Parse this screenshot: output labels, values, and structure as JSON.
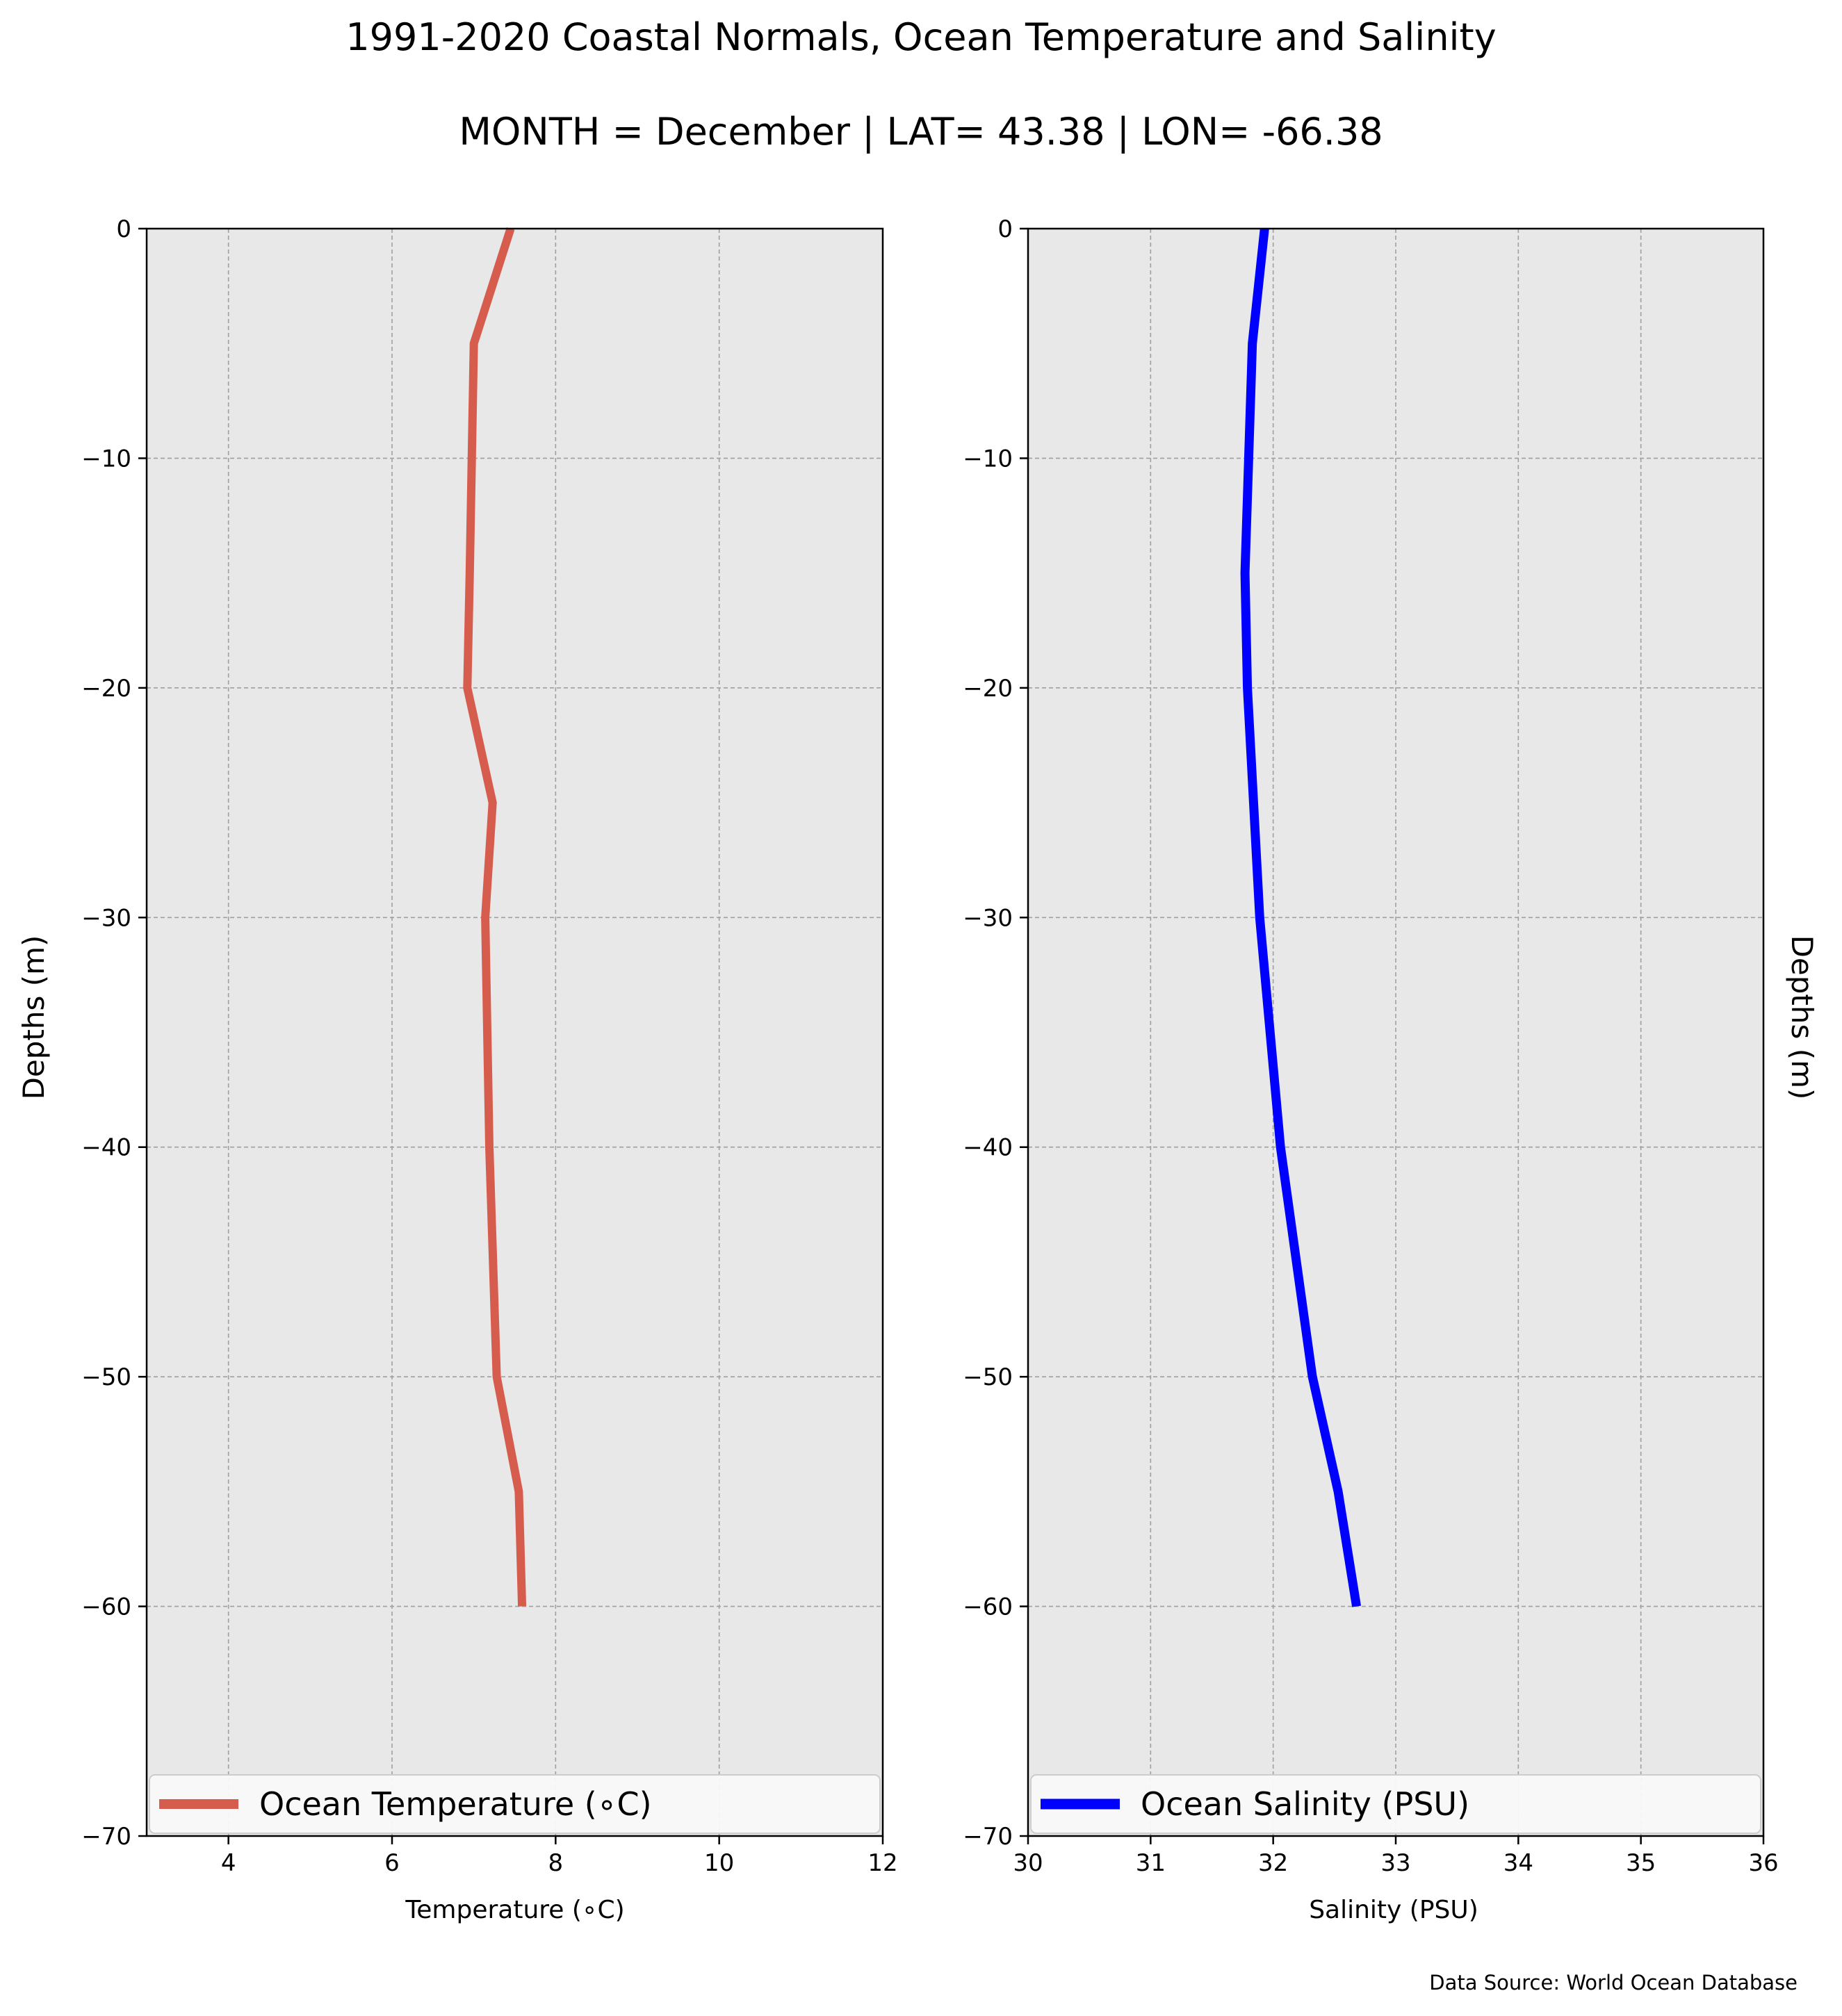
{
  "title": "1991-2020 Coastal Normals, Ocean Temperature and Salinity",
  "subtitle": "MONTH = December | LAT= 43.38 | LON= -66.38",
  "source_note": "Data Source: World Ocean Database",
  "colors": {
    "temperature_line": "#d65d4e",
    "salinity_line": "#0000ff",
    "plot_background": "#e8e8e8",
    "grid": "#a0a0a0"
  },
  "chart_data": [
    {
      "type": "line",
      "title": "",
      "xlabel": "Temperature (∘C)",
      "ylabel": "Depths (m)",
      "xlim": [
        3,
        12
      ],
      "ylim": [
        -70,
        0
      ],
      "xticks": [
        4,
        6,
        8,
        10,
        12
      ],
      "xtick_labels": [
        "4",
        "6",
        "8",
        "10",
        "12"
      ],
      "yticks": [
        0,
        -10,
        -20,
        -30,
        -40,
        -50,
        -60,
        -70
      ],
      "ytick_labels": [
        "0",
        "−10",
        "−20",
        "−30",
        "−40",
        "−50",
        "−60",
        "−70"
      ],
      "grid": true,
      "legend_position": "bottom",
      "series": [
        {
          "name": "Ocean Temperature (∘C)",
          "x": [
            7.45,
            7.0,
            6.95,
            6.92,
            7.23,
            7.14,
            7.19,
            7.28,
            7.55,
            7.59
          ],
          "y": [
            0,
            -5,
            -15,
            -20,
            -25,
            -30,
            -40,
            -50,
            -55,
            -60
          ]
        }
      ]
    },
    {
      "type": "line",
      "title": "",
      "xlabel": "Salinity (PSU)",
      "ylabel": "Depths (m)",
      "xlim": [
        30,
        36
      ],
      "ylim": [
        -70,
        0
      ],
      "xticks": [
        30,
        31,
        32,
        33,
        34,
        35,
        36
      ],
      "xtick_labels": [
        "30",
        "31",
        "32",
        "33",
        "34",
        "35",
        "36"
      ],
      "yticks": [
        0,
        -10,
        -20,
        -30,
        -40,
        -50,
        -60,
        -70
      ],
      "ytick_labels": [
        "0",
        "−10",
        "−20",
        "−30",
        "−40",
        "−50",
        "−60",
        "−70"
      ],
      "grid": true,
      "legend_position": "bottom",
      "series": [
        {
          "name": "Ocean Salinity (PSU)",
          "x": [
            31.93,
            31.83,
            31.77,
            31.79,
            31.89,
            32.06,
            32.32,
            32.53,
            32.68
          ],
          "y": [
            0,
            -5,
            -15,
            -20,
            -30,
            -40,
            -50,
            -55,
            -60
          ]
        }
      ]
    }
  ]
}
